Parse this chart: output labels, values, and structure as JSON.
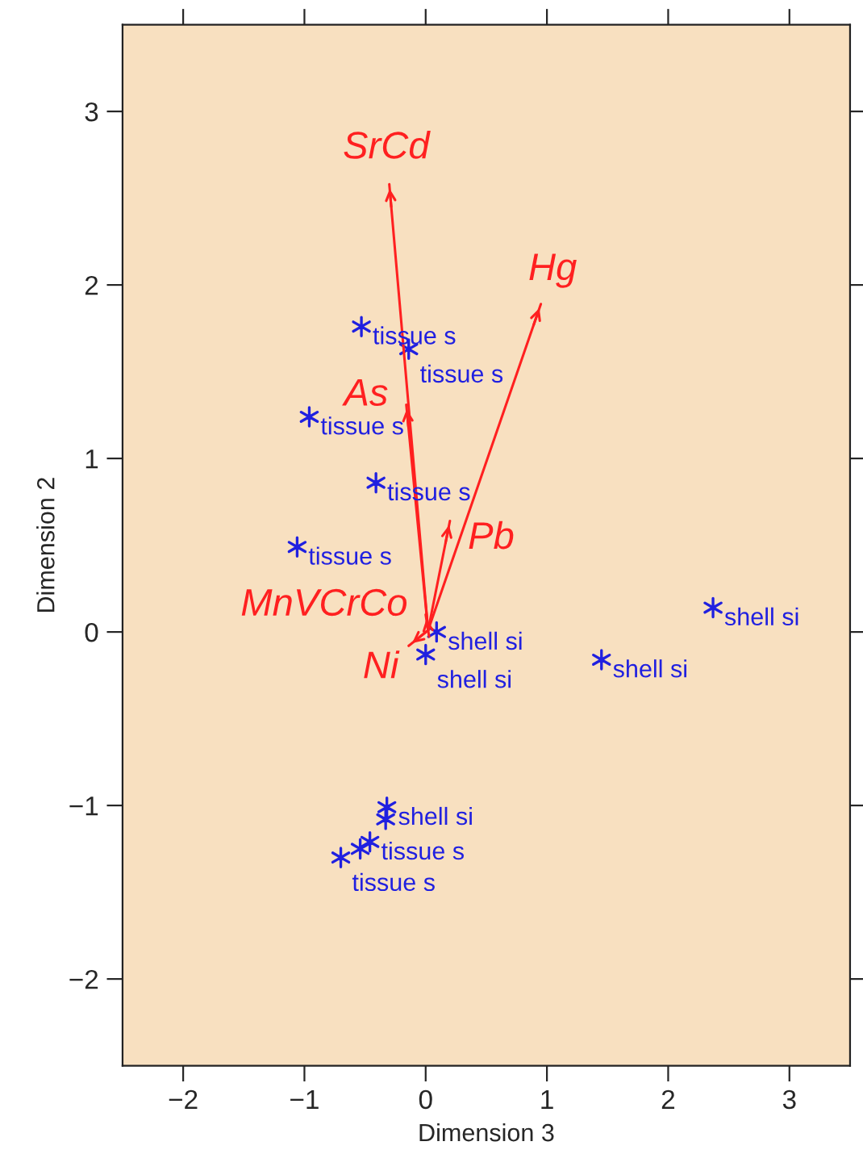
{
  "chart_data": {
    "type": "scatter",
    "xlabel": "Dimension 3",
    "ylabel": "Dimension 2",
    "xlim": [
      -2.5,
      3.5
    ],
    "ylim": [
      -2.5,
      3.5
    ],
    "xticks": [
      -2,
      -1,
      0,
      1,
      2,
      3
    ],
    "yticks": [
      -2,
      -1,
      0,
      1,
      2,
      3
    ],
    "grid": false,
    "series": [
      {
        "marker": "cross",
        "color": "#2020e0",
        "x": [
          -0.53,
          -0.14,
          -0.96,
          -0.41,
          -1.06,
          -0.46,
          -0.54,
          -0.7
        ],
        "values": [
          1.76,
          1.63,
          1.24,
          0.86,
          0.49,
          -1.21,
          -1.25,
          -1.3
        ],
        "value_labels": [
          "tissue s",
          "tissue s",
          "tissue s",
          "tissue s",
          "tissue s",
          "tissue s",
          null,
          "tissue s"
        ]
      },
      {
        "marker": "cross",
        "color": "#2020e0",
        "x": [
          0.09,
          0.0,
          1.45,
          2.37,
          -0.32,
          -0.33
        ],
        "values": [
          0.0,
          -0.13,
          -0.16,
          0.14,
          -1.01,
          -1.08
        ],
        "value_labels": [
          "shell si",
          "shell si",
          "shell si",
          "shell si",
          "shell si",
          null
        ]
      },
      {
        "type": "line",
        "name": "SrCd",
        "color": "#ff2020",
        "x": [
          0.02,
          -0.3
        ],
        "values": [
          0.01,
          2.58
        ]
      },
      {
        "type": "line",
        "name": "Hg",
        "color": "#ff2020",
        "x": [
          0.02,
          0.95
        ],
        "values": [
          0.01,
          1.89
        ]
      },
      {
        "type": "line",
        "name": "As",
        "color": "#ff2020",
        "x": [
          0.02,
          -0.16
        ],
        "values": [
          0.01,
          1.31
        ]
      },
      {
        "type": "line",
        "name": "Pb",
        "color": "#ff2020",
        "x": [
          0.02,
          0.2
        ],
        "values": [
          0.01,
          0.64
        ]
      },
      {
        "type": "line",
        "name": "MnVCrCo",
        "color": "#ff2020",
        "x": [
          0.02,
          0.0
        ],
        "values": [
          0.01,
          0.1
        ]
      },
      {
        "type": "line",
        "name": "Ni",
        "color": "#ff2020",
        "x": [
          0.02,
          -0.14
        ],
        "values": [
          0.01,
          -0.08
        ]
      }
    ]
  }
}
